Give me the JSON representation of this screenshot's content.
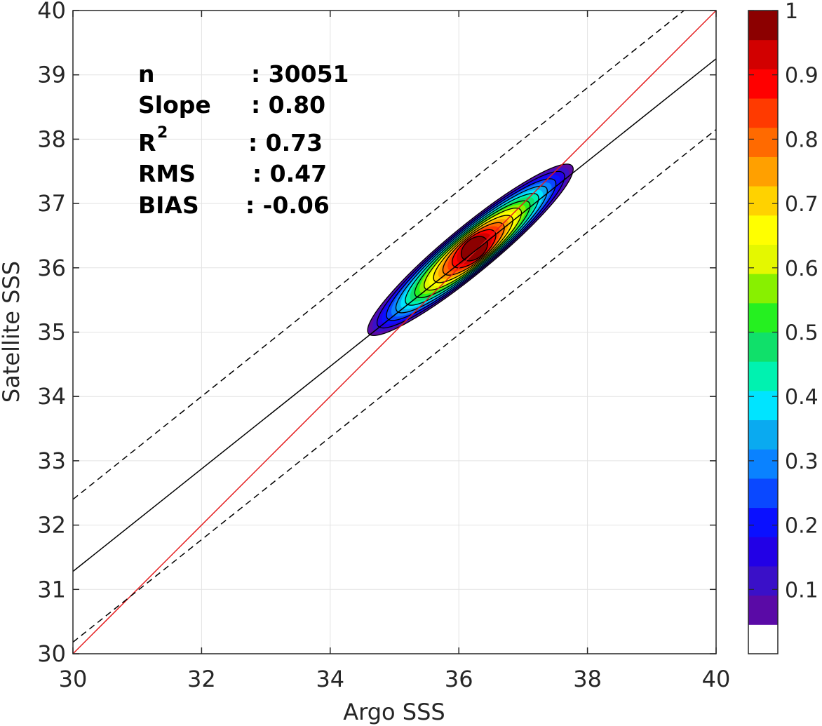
{
  "chart_data": {
    "type": "contour-density-scatter",
    "xlabel": "Argo SSS",
    "ylabel": "Satellite SSS",
    "xlim": [
      30,
      40
    ],
    "ylim": [
      30,
      40
    ],
    "x_ticks": [
      30,
      32,
      34,
      36,
      38,
      40
    ],
    "y_ticks": [
      30,
      31,
      32,
      33,
      34,
      35,
      36,
      37,
      38,
      39,
      40
    ],
    "grid": true,
    "stats": {
      "n_label": "n",
      "n_value": ": 30051",
      "slope_label": "Slope",
      "slope_value": ": 0.80",
      "r2_label": "R",
      "r2_exponent": "2",
      "r2_value": ": 0.73",
      "rms_label": "RMS",
      "rms_value": ": 0.47",
      "bias_label": "BIAS",
      "bias_value": ": -0.06"
    },
    "lines": [
      {
        "name": "one-to-one",
        "color": "#e41a1c",
        "style": "solid",
        "from": [
          30,
          30
        ],
        "to": [
          40,
          40
        ]
      },
      {
        "name": "regression",
        "color": "#000000",
        "style": "solid",
        "from": [
          30,
          31.28
        ],
        "to": [
          40,
          39.25
        ]
      },
      {
        "name": "upper-bound",
        "color": "#000000",
        "style": "dashed",
        "from": [
          30,
          32.4
        ],
        "to": [
          39.5,
          40
        ]
      },
      {
        "name": "lower-bound",
        "color": "#000000",
        "style": "dashed",
        "from": [
          30,
          30.18
        ],
        "to": [
          40,
          38.15
        ]
      }
    ],
    "density_peak": [
      36.25,
      36.3
    ],
    "colorbar": {
      "ticks": [
        0.1,
        0.2,
        0.3,
        0.4,
        0.5,
        0.6,
        0.7,
        0.8,
        0.9,
        1
      ],
      "tick_labels": [
        "0.1",
        "0.2",
        "0.3",
        "0.4",
        "0.5",
        "0.6",
        "0.7",
        "0.8",
        "0.9",
        "1"
      ],
      "range": [
        0,
        1
      ],
      "colors": [
        "#ffffff",
        "#5a0aa6",
        "#3a10c8",
        "#2200e6",
        "#0a10ff",
        "#0a48ff",
        "#0a82ff",
        "#0aaaf0",
        "#00e4ff",
        "#00f2b0",
        "#10e06a",
        "#25f020",
        "#88f000",
        "#e4f800",
        "#ffff00",
        "#ffd200",
        "#ffa000",
        "#ff6a00",
        "#ff3a00",
        "#ff0000",
        "#d20000",
        "#8c0000"
      ]
    }
  }
}
